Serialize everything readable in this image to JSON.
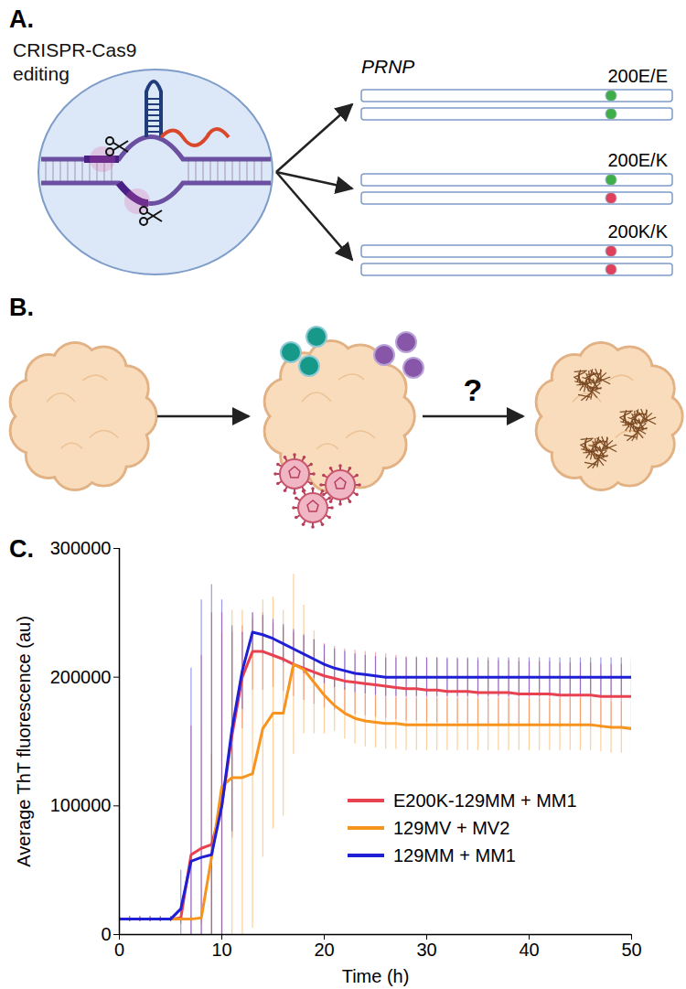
{
  "panels": {
    "A": {
      "label": "A.",
      "cell_text": "CRISPR-Cas9 editing",
      "gene": "PRNP",
      "genotypes": [
        "200E/E",
        "200E/K",
        "200K/K"
      ]
    },
    "B": {
      "label": "B.",
      "question": "?"
    }
  },
  "chart_data": {
    "panel_label": "C.",
    "type": "line",
    "xlabel": "Time (h)",
    "ylabel": "Average ThT fluorescence (au)",
    "x": [
      0,
      1,
      2,
      3,
      4,
      5,
      6,
      7,
      8,
      9,
      10,
      11,
      12,
      13,
      14,
      15,
      16,
      17,
      18,
      19,
      20,
      21,
      22,
      23,
      24,
      25,
      26,
      27,
      28,
      29,
      30,
      31,
      32,
      33,
      34,
      35,
      36,
      37,
      38,
      39,
      40,
      41,
      42,
      43,
      44,
      45,
      46,
      47,
      48,
      49,
      50
    ],
    "xlim": [
      0,
      50
    ],
    "xticks": [
      0,
      10,
      20,
      30,
      40,
      50
    ],
    "ylim": [
      0,
      300000
    ],
    "yticks": [
      0,
      100000,
      200000,
      300000
    ],
    "grid": false,
    "legend": "right",
    "series": [
      {
        "name": "E200K-129MM + MM1",
        "color": "#e8414f",
        "values": [
          12000,
          12000,
          12000,
          12000,
          12000,
          12000,
          13000,
          62000,
          67000,
          70000,
          100000,
          155000,
          200000,
          220000,
          220000,
          217000,
          214000,
          210000,
          207000,
          204000,
          201000,
          199000,
          197000,
          196000,
          195000,
          194000,
          193000,
          192000,
          191000,
          191000,
          190000,
          190000,
          189000,
          189000,
          189000,
          188000,
          188000,
          188000,
          188000,
          187000,
          187000,
          187000,
          187000,
          186000,
          186000,
          186000,
          186000,
          185000,
          185000,
          185000,
          185000
        ],
        "errors": [
          2000,
          2000,
          2000,
          2000,
          2000,
          2000,
          5000,
          100000,
          150000,
          180000,
          150000,
          80000,
          40000,
          30000,
          30000,
          25000,
          25000,
          25000,
          25000,
          25000,
          25000,
          25000,
          25000,
          25000,
          25000,
          25000,
          25000,
          25000,
          25000,
          25000,
          25000,
          25000,
          25000,
          25000,
          25000,
          25000,
          25000,
          25000,
          25000,
          25000,
          25000,
          25000,
          25000,
          25000,
          25000,
          25000,
          25000,
          25000,
          25000,
          25000,
          25000
        ]
      },
      {
        "name": "129MV + MV2",
        "color": "#f7941d",
        "values": [
          12000,
          12000,
          12000,
          12000,
          12000,
          12000,
          12000,
          12000,
          13000,
          60000,
          115000,
          122000,
          122000,
          125000,
          160000,
          172000,
          172000,
          210000,
          206000,
          196000,
          186000,
          178000,
          172000,
          168000,
          166000,
          165000,
          164000,
          164000,
          163000,
          163000,
          163000,
          163000,
          163000,
          163000,
          163000,
          163000,
          163000,
          163000,
          163000,
          163000,
          163000,
          163000,
          163000,
          163000,
          163000,
          163000,
          163000,
          162000,
          161000,
          161000,
          160000
        ],
        "errors": [
          2000,
          2000,
          2000,
          2000,
          2000,
          2000,
          2000,
          2000,
          5000,
          80000,
          120000,
          130000,
          130000,
          120000,
          100000,
          90000,
          80000,
          70000,
          50000,
          40000,
          30000,
          20000,
          20000,
          20000,
          20000,
          20000,
          20000,
          20000,
          20000,
          20000,
          20000,
          20000,
          20000,
          20000,
          20000,
          20000,
          20000,
          20000,
          20000,
          20000,
          20000,
          20000,
          20000,
          20000,
          20000,
          20000,
          20000,
          20000,
          20000,
          20000,
          20000
        ]
      },
      {
        "name": "129MM + MM1",
        "color": "#1f1fd6",
        "values": [
          12000,
          12000,
          12000,
          12000,
          12000,
          12000,
          20000,
          57000,
          60000,
          62000,
          100000,
          160000,
          205000,
          235000,
          233000,
          230000,
          226000,
          222000,
          218000,
          214000,
          210000,
          207000,
          205000,
          203000,
          202000,
          201000,
          200000,
          200000,
          200000,
          200000,
          200000,
          200000,
          200000,
          200000,
          200000,
          200000,
          200000,
          200000,
          200000,
          200000,
          200000,
          200000,
          200000,
          200000,
          200000,
          200000,
          200000,
          200000,
          200000,
          200000,
          200000
        ],
        "errors": [
          2000,
          2000,
          2000,
          2000,
          2000,
          2000,
          30000,
          150000,
          200000,
          210000,
          160000,
          80000,
          30000,
          15000,
          15000,
          15000,
          15000,
          15000,
          15000,
          15000,
          15000,
          15000,
          15000,
          15000,
          15000,
          15000,
          15000,
          15000,
          15000,
          15000,
          15000,
          15000,
          15000,
          15000,
          15000,
          15000,
          15000,
          15000,
          15000,
          15000,
          15000,
          15000,
          15000,
          15000,
          15000,
          15000,
          15000,
          15000,
          15000,
          15000,
          15000
        ]
      }
    ]
  }
}
